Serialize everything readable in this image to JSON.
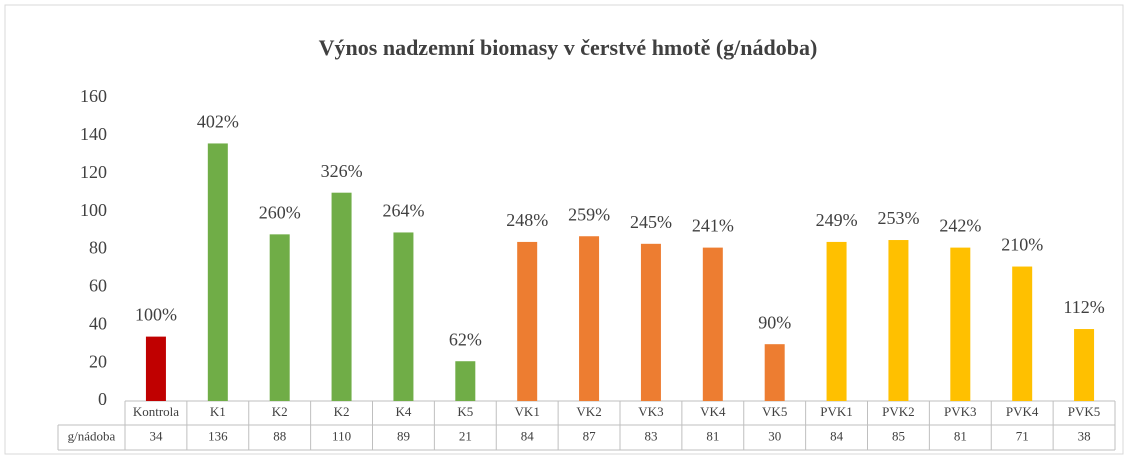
{
  "chart_data": {
    "type": "bar",
    "title": "Výnos nadzemní biomasy v čerstvé hmotě (g/nádoba)",
    "categories": [
      "Kontrola",
      "K1",
      "K2",
      "K2",
      "K4",
      "K5",
      "VK1",
      "VK2",
      "VK3",
      "VK4",
      "VK5",
      "PVK1",
      "PVK2",
      "PVK3",
      "PVK4",
      "PVK5"
    ],
    "values": [
      34,
      136,
      88,
      110,
      89,
      21,
      84,
      87,
      83,
      81,
      30,
      84,
      85,
      81,
      71,
      38
    ],
    "percent_labels": [
      "100%",
      "402%",
      "260%",
      "326%",
      "264%",
      "62%",
      "248%",
      "259%",
      "245%",
      "241%",
      "90%",
      "249%",
      "253%",
      "242%",
      "210%",
      "112%"
    ],
    "colors": [
      "#c00000",
      "#70ad47",
      "#70ad47",
      "#70ad47",
      "#70ad47",
      "#70ad47",
      "#ed7d31",
      "#ed7d31",
      "#ed7d31",
      "#ed7d31",
      "#ed7d31",
      "#ffc000",
      "#ffc000",
      "#ffc000",
      "#ffc000",
      "#ffc000"
    ],
    "table_row_label": "g/nádoba",
    "ylim": [
      0,
      160
    ],
    "yticks": [
      0,
      20,
      40,
      60,
      80,
      100,
      120,
      140,
      160
    ],
    "grid": false
  }
}
